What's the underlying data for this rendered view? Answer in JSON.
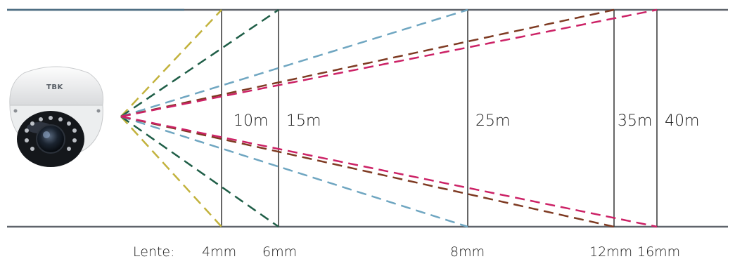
{
  "camera": {
    "brand": "TBK",
    "icon": "dome-camera-icon"
  },
  "lens_prefix": "Lente:",
  "lenses": [
    {
      "lens": "4mm",
      "distance": "10m",
      "color": "#c2b23c"
    },
    {
      "lens": "6mm",
      "distance": "15m",
      "color": "#1f5e47"
    },
    {
      "lens": "8mm",
      "distance": "25m",
      "color": "#6fa6c1"
    },
    {
      "lens": "12mm",
      "distance": "35m",
      "color": "#7e3a22"
    },
    {
      "lens": "16mm",
      "distance": "40m",
      "color": "#cc2266"
    }
  ],
  "colors": {
    "ground_lines": "#5f646b",
    "top_line_accent": "#4e6f84",
    "distance_markers": "#333333"
  }
}
